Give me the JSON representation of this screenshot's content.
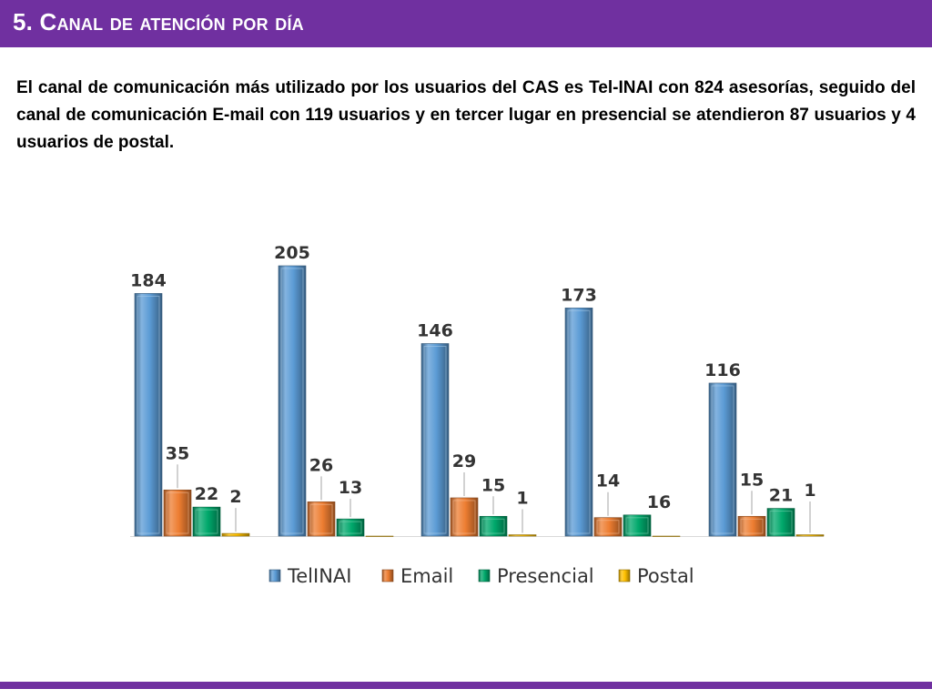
{
  "slide": {
    "title": "5. Canal de atención por día",
    "description": "El canal de comunicación más utilizado por los usuarios del CAS es Tel-INAI con 824 asesorías, seguido del canal de comunicación E-mail con 119 usuarios y en tercer lugar en presencial se atendieron 87 usuarios y 4 usuarios de postal."
  },
  "colors": {
    "header": "#7030a0",
    "TelINAI": "#5b9bd5",
    "Email": "#ed7d31",
    "Presencial": "#00a86b",
    "Postal": "#ffc000"
  },
  "chart_data": {
    "type": "bar",
    "categories": [
      "",
      "",
      "",
      "",
      ""
    ],
    "series": [
      {
        "name": "TelINAI",
        "values": [
          184,
          205,
          146,
          173,
          116
        ]
      },
      {
        "name": "Email",
        "values": [
          35,
          26,
          29,
          14,
          15
        ]
      },
      {
        "name": "Presencial",
        "values": [
          22,
          13,
          15,
          16,
          21
        ]
      },
      {
        "name": "Postal",
        "values": [
          2,
          0,
          1,
          0,
          1
        ]
      }
    ],
    "ylim": [
      0,
      205
    ],
    "grid": false,
    "legend": "bottom"
  }
}
